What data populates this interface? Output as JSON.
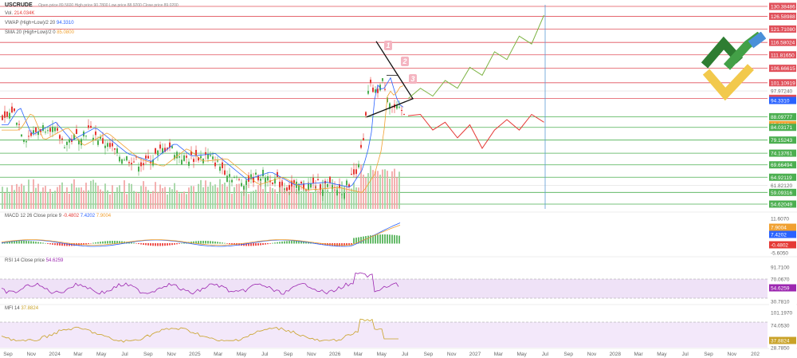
{
  "header": {
    "symbol": "USCRUDE",
    "ohlc": "Open price 89.5600  High price 90.7800  Low price 88.9200  Close price 89.0200",
    "volume_label": "Vol.",
    "volume_value": "214.034K",
    "vwap_label": "VWAP (High+Low)/2 20",
    "vwap_value": "94.3310",
    "sma_label": "SMA 20 (High+Low)/2 0",
    "sma_value": "85.0800"
  },
  "indicators": {
    "macd_label": "MACD 12 26 Close price 9",
    "macd_v1": "-0.4802",
    "macd_v2": "7.4202",
    "macd_v3": "7.9004",
    "rsi_label": "RSI 14 Close price",
    "rsi_value": "54.6259",
    "mfi_label": "MFI 14",
    "mfi_value": "37.8824"
  },
  "wave_labels": [
    "1",
    "2",
    "3"
  ],
  "colors": {
    "resistance": "#e0505a",
    "support": "#4caf50",
    "bull_projection": "#7cb342",
    "bear_projection": "#e53935",
    "vwap": "#2962ff",
    "sma": "#f0a030",
    "candle_up": "#4caf50",
    "candle_down": "#e53935",
    "rsi_band": "#efe2f7",
    "rsi_line": "#9c27b0",
    "mfi_line": "#c9a227",
    "time_marker": "#5b9bd5"
  },
  "chart_data": {
    "type": "candlestick",
    "ylim": [
      54,
      131
    ],
    "price_levels": [
      {
        "value": "130.38486",
        "kind": "resistance"
      },
      {
        "value": "126.58988",
        "kind": "resistance"
      },
      {
        "value": "121.71080",
        "kind": "resistance"
      },
      {
        "value": "116.58024",
        "kind": "resistance"
      },
      {
        "value": "111.81650",
        "kind": "resistance"
      },
      {
        "value": "106.66615",
        "kind": "resistance"
      },
      {
        "value": "101.10919",
        "kind": "resistance"
      },
      {
        "value": "97.97240",
        "kind": "grid"
      },
      {
        "value": "95.14562",
        "kind": "resistance"
      },
      {
        "value": "94.3310",
        "kind": "vwap"
      },
      {
        "value": "88.09777",
        "kind": "support"
      },
      {
        "value": "85.0800",
        "kind": "sma"
      },
      {
        "value": "84.03171",
        "kind": "support"
      },
      {
        "value": "79.15243",
        "kind": "support"
      },
      {
        "value": "74.13761",
        "kind": "support"
      },
      {
        "value": "69.66494",
        "kind": "support"
      },
      {
        "value": "64.92119",
        "kind": "support"
      },
      {
        "value": "61.82120",
        "kind": "grid"
      },
      {
        "value": "59.09316",
        "kind": "support"
      },
      {
        "value": "54.62049",
        "kind": "support"
      }
    ],
    "time_axis": [
      "Sep",
      "Nov",
      "2024",
      "Mar",
      "May",
      "Jul",
      "Sep",
      "Nov",
      "2025",
      "Mar",
      "May",
      "Jul",
      "Sep",
      "Nov",
      "2026",
      "Mar",
      "May",
      "Jul",
      "Sep",
      "Nov",
      "2027",
      "Mar",
      "May",
      "Jul",
      "Sep",
      "Nov",
      "2028",
      "Mar",
      "May",
      "Jul",
      "Sep",
      "Nov",
      "202"
    ],
    "macd_axis": [
      "11.6070",
      "-5.6050"
    ],
    "rsi_axis": [
      "91.7100",
      "70.0670",
      "30.7810"
    ],
    "mfi_axis": [
      "101.1970",
      "74.0530",
      "28.7850"
    ],
    "bull_projection": [
      95,
      99,
      96,
      102,
      99,
      107,
      104,
      113,
      110,
      119,
      116,
      127
    ],
    "bear_projection": [
      88.5,
      89,
      83,
      86,
      80,
      85,
      76,
      83,
      87,
      83,
      89,
      86
    ]
  }
}
